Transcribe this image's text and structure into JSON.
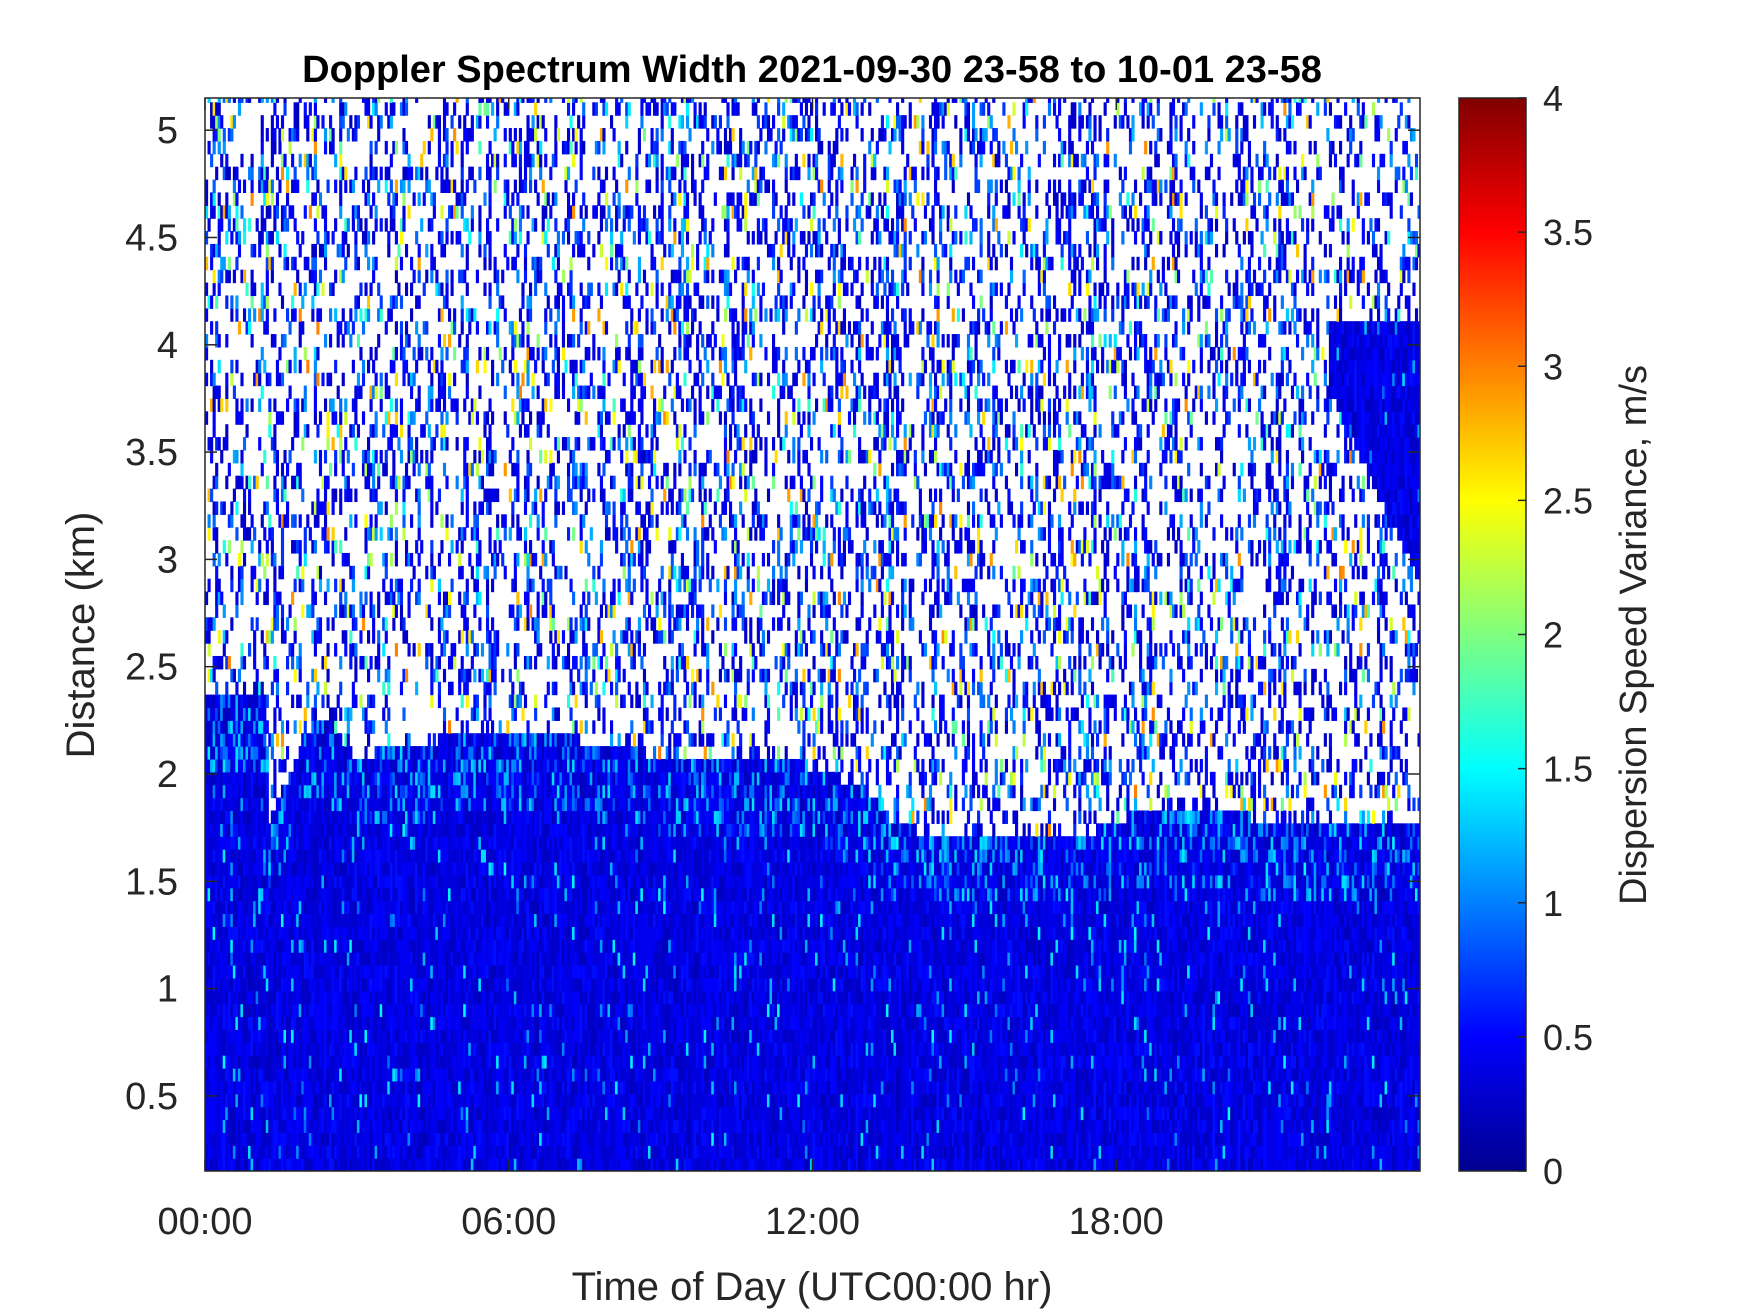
{
  "chart_data": {
    "type": "heatmap",
    "title": "Doppler Spectrum Width 2021-09-30 23-58 to 10-01 23-58",
    "xlabel": "Time of Day (UTC00:00 hr)",
    "ylabel": "Distance (km)",
    "colorbar_label": "Dispersion Speed Variance, m/s",
    "colormap": "jet",
    "xlim_hours": [
      0,
      24
    ],
    "ylim_km": [
      0.15,
      5.15
    ],
    "clim": [
      0,
      4
    ],
    "x_ticks": [
      {
        "hours": 0,
        "label": "00:00"
      },
      {
        "hours": 6,
        "label": "06:00"
      },
      {
        "hours": 12,
        "label": "12:00"
      },
      {
        "hours": 18,
        "label": "18:00"
      }
    ],
    "y_ticks": [
      {
        "value": 0.5,
        "label": "0.5"
      },
      {
        "value": 1,
        "label": "1"
      },
      {
        "value": 1.5,
        "label": "1.5"
      },
      {
        "value": 2,
        "label": "2"
      },
      {
        "value": 2.5,
        "label": "2.5"
      },
      {
        "value": 3,
        "label": "3"
      },
      {
        "value": 3.5,
        "label": "3.5"
      },
      {
        "value": 4,
        "label": "4"
      },
      {
        "value": 4.5,
        "label": "4.5"
      },
      {
        "value": 5,
        "label": "5"
      }
    ],
    "colorbar_ticks": [
      {
        "value": 0,
        "label": "0"
      },
      {
        "value": 0.5,
        "label": "0.5"
      },
      {
        "value": 1,
        "label": "1"
      },
      {
        "value": 1.5,
        "label": "1.5"
      },
      {
        "value": 2,
        "label": "2"
      },
      {
        "value": 2.5,
        "label": "2.5"
      },
      {
        "value": 3,
        "label": "3"
      },
      {
        "value": 3.5,
        "label": "3.5"
      },
      {
        "value": 4,
        "label": "4"
      }
    ],
    "dense_layer_top_km": {
      "hours": [
        0,
        1.2,
        1.25,
        2.2,
        3.0,
        5.0,
        7.0,
        9.0,
        11.5,
        13.0,
        13.6,
        14.0,
        16.0,
        17.5,
        18.5,
        20.0,
        21.0,
        22.0,
        24.0
      ],
      "km": [
        2.35,
        2.35,
        1.75,
        2.25,
        2.05,
        2.15,
        2.15,
        2.05,
        2.05,
        1.9,
        1.75,
        1.7,
        1.7,
        1.7,
        1.8,
        1.8,
        1.75,
        1.75,
        1.75
      ]
    },
    "upper_dense_region": {
      "hours_span": [
        22.2,
        24.0
      ],
      "top_km": 4.05,
      "bottom_km_at_start": 3.75,
      "bottom_km_at_end": 2.85
    },
    "sparse_echo_top_km": 5.15,
    "typical_value_dense": 0.4,
    "typical_value_sparse": 0.6,
    "colors": {
      "background": "#ffffff",
      "axis": "#262626",
      "title": "#000000"
    }
  }
}
